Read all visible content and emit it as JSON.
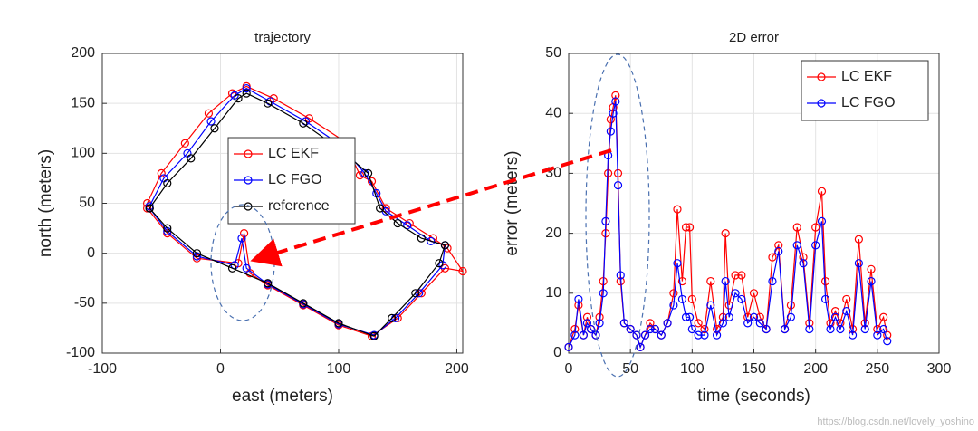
{
  "chart_data": [
    {
      "type": "line",
      "title": "trajectory",
      "xlabel": "east (meters)",
      "ylabel": "north (meters)",
      "xlim": [
        -100,
        205
      ],
      "ylim": [
        -100,
        200
      ],
      "xticks": [
        -100,
        0,
        100,
        200
      ],
      "yticks": [
        -100,
        -50,
        0,
        50,
        100,
        150,
        200
      ],
      "grid": true,
      "legend": "center",
      "series": [
        {
          "name": "LC EKF",
          "color": "#ff0000",
          "x": [
            -62,
            -50,
            -30,
            -10,
            10,
            22,
            45,
            75,
            105,
            118,
            128,
            140,
            160,
            180,
            192,
            205,
            190,
            170,
            150,
            128,
            100,
            70,
            40,
            25,
            20,
            15,
            -20,
            -45,
            -62
          ],
          "values": [
            50,
            80,
            110,
            140,
            160,
            167,
            155,
            135,
            112,
            78,
            72,
            45,
            30,
            15,
            5,
            -18,
            -15,
            -40,
            -65,
            -83,
            -72,
            -52,
            -32,
            -20,
            20,
            -10,
            -5,
            20,
            45
          ]
        },
        {
          "name": "LC FGO",
          "color": "#0000ff",
          "x": [
            -60,
            -48,
            -28,
            -8,
            12,
            22,
            42,
            72,
            102,
            122,
            132,
            140,
            158,
            178,
            190,
            188,
            168,
            148,
            130,
            100,
            70,
            40,
            22,
            18,
            12,
            -20,
            -45,
            -60
          ],
          "values": [
            47,
            75,
            100,
            132,
            158,
            165,
            152,
            132,
            108,
            80,
            60,
            42,
            28,
            12,
            8,
            -12,
            -40,
            -65,
            -82,
            -71,
            -51,
            -31,
            -15,
            15,
            -12,
            -3,
            22,
            45
          ]
        },
        {
          "name": "reference",
          "color": "#000000",
          "x": [
            -60,
            -45,
            -25,
            -5,
            15,
            22,
            40,
            70,
            100,
            125,
            135,
            150,
            170,
            190,
            185,
            165,
            145,
            130,
            100,
            70,
            40,
            10,
            -20,
            -45,
            -60
          ],
          "values": [
            45,
            70,
            95,
            125,
            155,
            160,
            150,
            130,
            105,
            80,
            45,
            30,
            15,
            8,
            -10,
            -40,
            -65,
            -83,
            -70,
            -50,
            -30,
            -15,
            0,
            25,
            45
          ]
        }
      ]
    },
    {
      "type": "line",
      "title": "2D error",
      "xlabel": "time (seconds)",
      "ylabel": "error (meters)",
      "xlim": [
        0,
        300
      ],
      "ylim": [
        0,
        50
      ],
      "xticks": [
        0,
        50,
        100,
        150,
        200,
        250,
        300
      ],
      "yticks": [
        0,
        10,
        20,
        30,
        40,
        50
      ],
      "grid": true,
      "legend": "upper right",
      "x": [
        0,
        5,
        8,
        12,
        15,
        18,
        22,
        25,
        28,
        30,
        32,
        34,
        36,
        38,
        40,
        42,
        45,
        50,
        55,
        58,
        62,
        66,
        70,
        75,
        80,
        85,
        88,
        92,
        95,
        98,
        100,
        105,
        110,
        115,
        120,
        125,
        127,
        130,
        135,
        140,
        145,
        150,
        155,
        160,
        165,
        170,
        175,
        180,
        185,
        190,
        195,
        200,
        205,
        208,
        212,
        216,
        220,
        225,
        230,
        235,
        240,
        245,
        250,
        255,
        258
      ],
      "series": [
        {
          "name": "LC EKF",
          "color": "#ff0000",
          "values": [
            1,
            4,
            8,
            3,
            6,
            4,
            3,
            6,
            12,
            20,
            30,
            39,
            41,
            43,
            30,
            12,
            5,
            4,
            3,
            1,
            3,
            5,
            4,
            3,
            5,
            10,
            24,
            12,
            21,
            21,
            9,
            5,
            4,
            12,
            4,
            6,
            20,
            8,
            13,
            13,
            6,
            10,
            6,
            4,
            16,
            18,
            4,
            8,
            21,
            16,
            5,
            21,
            27,
            12,
            5,
            7,
            5,
            9,
            4,
            19,
            5,
            14,
            4,
            6,
            3
          ]
        },
        {
          "name": "LC FGO",
          "color": "#0000ff",
          "values": [
            1,
            3,
            9,
            3,
            5,
            4,
            3,
            5,
            10,
            22,
            33,
            37,
            40,
            42,
            28,
            13,
            5,
            4,
            3,
            1,
            3,
            4,
            4,
            3,
            5,
            8,
            15,
            9,
            6,
            6,
            4,
            3,
            3,
            8,
            3,
            5,
            12,
            6,
            10,
            9,
            5,
            6,
            5,
            4,
            12,
            17,
            4,
            6,
            18,
            15,
            4,
            18,
            22,
            9,
            4,
            6,
            4,
            7,
            3,
            15,
            4,
            12,
            3,
            4,
            2
          ]
        }
      ]
    }
  ],
  "watermark": "https://blog.csdn.net/lovely_yoshino"
}
